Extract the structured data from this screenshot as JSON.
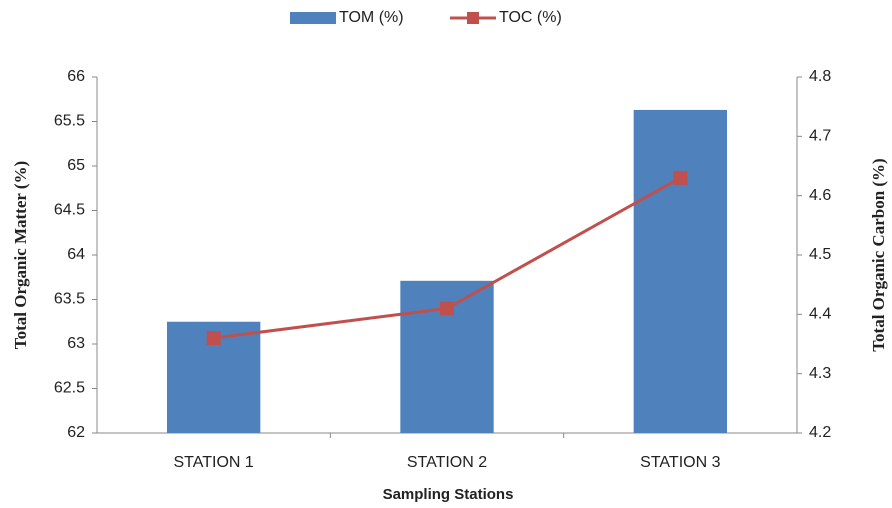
{
  "chart_data": {
    "type": "combo",
    "x_label": "Sampling Stations",
    "y_label": "Total Organic Matter (%)",
    "y2_label": "Total Organic Carbon (%)",
    "categories": [
      "STATION 1",
      "STATION 2",
      "STATION 3"
    ],
    "series": [
      {
        "name": "TOM (%)",
        "type": "bar",
        "color": "#4f81bd",
        "values": [
          63.25,
          63.71,
          65.63
        ]
      },
      {
        "name": "TOC (%)",
        "type": "line",
        "axis": "y2",
        "color": "#c0504d",
        "values": [
          4.36,
          4.41,
          4.63
        ]
      }
    ],
    "ylim": [
      62,
      66
    ],
    "yticks": [
      62,
      62.5,
      63,
      63.5,
      64,
      64.5,
      65,
      65.5,
      66
    ],
    "y2lim": [
      4.2,
      4.8
    ],
    "y2ticks": [
      4.2,
      4.3,
      4.4,
      4.5,
      4.6,
      4.7,
      4.8
    ],
    "grid": false,
    "legend": "top"
  }
}
